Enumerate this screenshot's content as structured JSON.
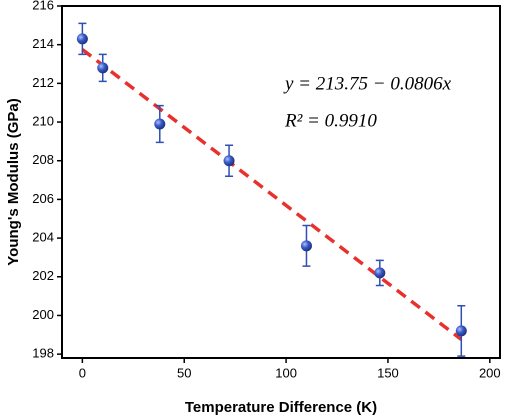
{
  "chart_data": {
    "type": "scatter",
    "xlabel": "Temperature Difference (K)",
    "ylabel": "Young's Modulus (GPa)",
    "xlim": [
      -10,
      205
    ],
    "xticks": [
      0,
      50,
      100,
      150,
      200
    ],
    "ylim": [
      197.8,
      216
    ],
    "yticks": [
      198,
      200,
      202,
      204,
      206,
      208,
      210,
      212,
      214,
      216
    ],
    "series": [
      {
        "color": "#2f4fb5",
        "x": [
          0,
          10,
          38,
          72,
          110,
          146,
          186
        ],
        "values": [
          214.3,
          212.8,
          209.9,
          208.0,
          203.6,
          202.2,
          199.2
        ],
        "errors": [
          0.8,
          0.7,
          0.95,
          0.8,
          1.05,
          0.65,
          1.3
        ]
      }
    ],
    "fit": {
      "color": "#e8302c",
      "x": [
        0,
        186
      ],
      "y": [
        213.75,
        198.76
      ]
    },
    "annotations": [
      "y = 213.75 − 0.0806x",
      "R² = 0.9910"
    ]
  }
}
